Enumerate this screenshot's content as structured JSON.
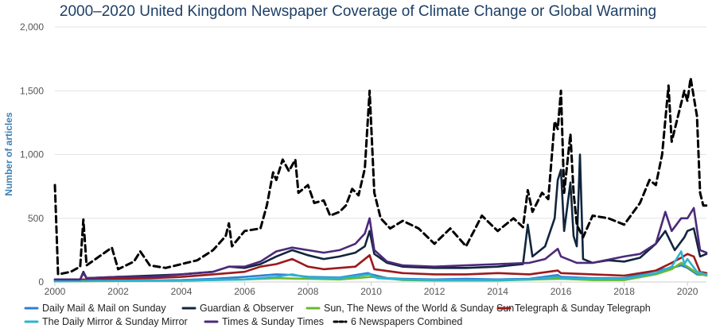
{
  "chart_data": {
    "type": "line",
    "title": "2000–2020 United Kingdom Newspaper Coverage of Climate Change or Global Warming",
    "xlabel": "",
    "ylabel": "Number of articles",
    "xlim": [
      2000,
      2020.6
    ],
    "ylim": [
      0,
      2000
    ],
    "x_ticks": [
      "2000",
      "2002",
      "2004",
      "2006",
      "2008",
      "2010",
      "2012",
      "2014",
      "2016",
      "2018",
      "2020"
    ],
    "y_ticks": [
      "0",
      "500",
      "1,000",
      "1,500",
      "2,000"
    ],
    "grid": true,
    "legend": "bottom",
    "series": [
      {
        "name": "Daily Mail & Mail on Sunday",
        "color": "#2f7fd4",
        "dash": "none",
        "points": [
          [
            2000,
            5
          ],
          [
            2001,
            10
          ],
          [
            2002,
            12
          ],
          [
            2003,
            12
          ],
          [
            2004,
            15
          ],
          [
            2005,
            25
          ],
          [
            2006,
            40
          ],
          [
            2007,
            60
          ],
          [
            2007.5,
            55
          ],
          [
            2008,
            40
          ],
          [
            2009,
            35
          ],
          [
            2009.9,
            70
          ],
          [
            2010,
            60
          ],
          [
            2010.5,
            30
          ],
          [
            2011,
            25
          ],
          [
            2012,
            20
          ],
          [
            2013,
            25
          ],
          [
            2014,
            20
          ],
          [
            2015,
            25
          ],
          [
            2015.9,
            55
          ],
          [
            2016,
            40
          ],
          [
            2017,
            30
          ],
          [
            2018,
            30
          ],
          [
            2019,
            90
          ],
          [
            2019.5,
            110
          ],
          [
            2019.8,
            130
          ],
          [
            2020,
            110
          ],
          [
            2020.3,
            60
          ],
          [
            2020.6,
            55
          ]
        ]
      },
      {
        "name": "Guardian & Observer",
        "color": "#11253d",
        "dash": "none",
        "points": [
          [
            2000,
            20
          ],
          [
            2000.8,
            20
          ],
          [
            2000.9,
            80
          ],
          [
            2001,
            30
          ],
          [
            2002,
            40
          ],
          [
            2003,
            50
          ],
          [
            2004,
            60
          ],
          [
            2005,
            80
          ],
          [
            2005.5,
            120
          ],
          [
            2006,
            110
          ],
          [
            2006.5,
            140
          ],
          [
            2007,
            200
          ],
          [
            2007.5,
            250
          ],
          [
            2008,
            210
          ],
          [
            2008.5,
            180
          ],
          [
            2009,
            200
          ],
          [
            2009.5,
            230
          ],
          [
            2009.8,
            280
          ],
          [
            2009.95,
            400
          ],
          [
            2010.1,
            220
          ],
          [
            2010.5,
            150
          ],
          [
            2011,
            120
          ],
          [
            2012,
            110
          ],
          [
            2013,
            110
          ],
          [
            2014,
            120
          ],
          [
            2014.8,
            140
          ],
          [
            2014.95,
            450
          ],
          [
            2015.1,
            200
          ],
          [
            2015.5,
            280
          ],
          [
            2015.8,
            500
          ],
          [
            2015.9,
            800
          ],
          [
            2016,
            880
          ],
          [
            2016.1,
            400
          ],
          [
            2016.3,
            780
          ],
          [
            2016.4,
            360
          ],
          [
            2016.5,
            280
          ],
          [
            2016.6,
            1000
          ],
          [
            2016.7,
            180
          ],
          [
            2017,
            150
          ],
          [
            2017.5,
            170
          ],
          [
            2018,
            160
          ],
          [
            2018.5,
            190
          ],
          [
            2019,
            300
          ],
          [
            2019.3,
            400
          ],
          [
            2019.6,
            250
          ],
          [
            2019.9,
            350
          ],
          [
            2020,
            400
          ],
          [
            2020.2,
            420
          ],
          [
            2020.4,
            200
          ],
          [
            2020.6,
            220
          ]
        ]
      },
      {
        "name": "Sun, The News of the World & Sunday Sun",
        "color": "#6ab82e",
        "dash": "none",
        "points": [
          [
            2000,
            5
          ],
          [
            2002,
            8
          ],
          [
            2004,
            10
          ],
          [
            2006,
            20
          ],
          [
            2007,
            30
          ],
          [
            2008,
            25
          ],
          [
            2009,
            20
          ],
          [
            2010,
            40
          ],
          [
            2011,
            15
          ],
          [
            2012,
            12
          ],
          [
            2014,
            12
          ],
          [
            2016,
            25
          ],
          [
            2017,
            15
          ],
          [
            2018,
            15
          ],
          [
            2019,
            60
          ],
          [
            2019.5,
            100
          ],
          [
            2019.8,
            150
          ],
          [
            2020,
            120
          ],
          [
            2020.3,
            70
          ],
          [
            2020.6,
            50
          ]
        ]
      },
      {
        "name": "Telegraph & Sunday Telegraph",
        "color": "#9c1a1c",
        "dash": "none",
        "points": [
          [
            2000,
            15
          ],
          [
            2001,
            20
          ],
          [
            2002,
            25
          ],
          [
            2003,
            30
          ],
          [
            2004,
            40
          ],
          [
            2005,
            60
          ],
          [
            2006,
            80
          ],
          [
            2006.5,
            120
          ],
          [
            2007,
            140
          ],
          [
            2007.5,
            180
          ],
          [
            2008,
            120
          ],
          [
            2008.5,
            100
          ],
          [
            2009,
            110
          ],
          [
            2009.5,
            120
          ],
          [
            2009.95,
            210
          ],
          [
            2010.1,
            100
          ],
          [
            2011,
            70
          ],
          [
            2012,
            60
          ],
          [
            2013,
            60
          ],
          [
            2014,
            70
          ],
          [
            2015,
            60
          ],
          [
            2015.9,
            90
          ],
          [
            2016,
            70
          ],
          [
            2017,
            60
          ],
          [
            2018,
            50
          ],
          [
            2019,
            90
          ],
          [
            2019.5,
            150
          ],
          [
            2019.8,
            190
          ],
          [
            2020,
            220
          ],
          [
            2020.2,
            200
          ],
          [
            2020.4,
            80
          ],
          [
            2020.6,
            70
          ]
        ]
      },
      {
        "name": "The Daily Mirror & Sunday Mirror",
        "color": "#2bb4cf",
        "dash": "none",
        "points": [
          [
            2000,
            5
          ],
          [
            2002,
            10
          ],
          [
            2004,
            12
          ],
          [
            2006,
            20
          ],
          [
            2007,
            40
          ],
          [
            2007.5,
            60
          ],
          [
            2008,
            35
          ],
          [
            2009,
            30
          ],
          [
            2009.95,
            60
          ],
          [
            2010.2,
            30
          ],
          [
            2011,
            20
          ],
          [
            2012,
            15
          ],
          [
            2013,
            15
          ],
          [
            2014,
            15
          ],
          [
            2015,
            20
          ],
          [
            2015.9,
            40
          ],
          [
            2016,
            30
          ],
          [
            2017,
            25
          ],
          [
            2018,
            25
          ],
          [
            2019,
            70
          ],
          [
            2019.5,
            120
          ],
          [
            2019.8,
            240
          ],
          [
            2019.9,
            140
          ],
          [
            2020,
            180
          ],
          [
            2020.3,
            80
          ],
          [
            2020.6,
            60
          ]
        ]
      },
      {
        "name": "Times & Sunday Times",
        "color": "#4b2a7a",
        "dash": "none",
        "points": [
          [
            2000,
            20
          ],
          [
            2000.8,
            20
          ],
          [
            2000.9,
            70
          ],
          [
            2001,
            30
          ],
          [
            2002,
            40
          ],
          [
            2003,
            40
          ],
          [
            2004,
            60
          ],
          [
            2005,
            80
          ],
          [
            2005.5,
            120
          ],
          [
            2006,
            120
          ],
          [
            2006.5,
            160
          ],
          [
            2007,
            240
          ],
          [
            2007.5,
            270
          ],
          [
            2008,
            250
          ],
          [
            2008.5,
            230
          ],
          [
            2009,
            250
          ],
          [
            2009.5,
            300
          ],
          [
            2009.8,
            380
          ],
          [
            2009.95,
            500
          ],
          [
            2010.1,
            250
          ],
          [
            2010.5,
            160
          ],
          [
            2011,
            130
          ],
          [
            2012,
            120
          ],
          [
            2013,
            130
          ],
          [
            2014,
            140
          ],
          [
            2015,
            150
          ],
          [
            2015.5,
            180
          ],
          [
            2015.9,
            260
          ],
          [
            2016,
            200
          ],
          [
            2016.5,
            150
          ],
          [
            2017,
            150
          ],
          [
            2018,
            200
          ],
          [
            2018.5,
            220
          ],
          [
            2019,
            300
          ],
          [
            2019.3,
            550
          ],
          [
            2019.5,
            400
          ],
          [
            2019.8,
            500
          ],
          [
            2020,
            500
          ],
          [
            2020.2,
            580
          ],
          [
            2020.4,
            250
          ],
          [
            2020.6,
            230
          ]
        ]
      },
      {
        "name": "6 Newspapers Combined",
        "color": "#000000",
        "dash": "8,5",
        "points": [
          [
            2000,
            760
          ],
          [
            2000.1,
            60
          ],
          [
            2000.5,
            80
          ],
          [
            2000.8,
            120
          ],
          [
            2000.9,
            490
          ],
          [
            2001,
            130
          ],
          [
            2001.4,
            200
          ],
          [
            2001.8,
            270
          ],
          [
            2002,
            100
          ],
          [
            2002.5,
            160
          ],
          [
            2002.7,
            240
          ],
          [
            2003,
            130
          ],
          [
            2003.5,
            110
          ],
          [
            2004,
            140
          ],
          [
            2004.5,
            170
          ],
          [
            2005,
            250
          ],
          [
            2005.4,
            360
          ],
          [
            2005.5,
            460
          ],
          [
            2005.6,
            280
          ],
          [
            2006,
            400
          ],
          [
            2006.5,
            420
          ],
          [
            2006.7,
            600
          ],
          [
            2006.9,
            860
          ],
          [
            2007,
            800
          ],
          [
            2007.2,
            960
          ],
          [
            2007.4,
            870
          ],
          [
            2007.6,
            960
          ],
          [
            2007.7,
            700
          ],
          [
            2008,
            760
          ],
          [
            2008.2,
            620
          ],
          [
            2008.5,
            640
          ],
          [
            2008.7,
            520
          ],
          [
            2009,
            550
          ],
          [
            2009.2,
            600
          ],
          [
            2009.4,
            730
          ],
          [
            2009.6,
            680
          ],
          [
            2009.8,
            890
          ],
          [
            2009.95,
            1500
          ],
          [
            2010.1,
            700
          ],
          [
            2010.3,
            500
          ],
          [
            2010.6,
            420
          ],
          [
            2011,
            480
          ],
          [
            2011.5,
            420
          ],
          [
            2012,
            300
          ],
          [
            2012.5,
            420
          ],
          [
            2013,
            280
          ],
          [
            2013.5,
            520
          ],
          [
            2014,
            400
          ],
          [
            2014.5,
            500
          ],
          [
            2014.8,
            430
          ],
          [
            2014.95,
            720
          ],
          [
            2015.1,
            550
          ],
          [
            2015.4,
            700
          ],
          [
            2015.6,
            650
          ],
          [
            2015.8,
            1260
          ],
          [
            2015.9,
            1200
          ],
          [
            2016,
            1500
          ],
          [
            2016.1,
            700
          ],
          [
            2016.3,
            1160
          ],
          [
            2016.4,
            700
          ],
          [
            2016.5,
            450
          ],
          [
            2016.7,
            350
          ],
          [
            2017,
            520
          ],
          [
            2017.5,
            500
          ],
          [
            2018,
            450
          ],
          [
            2018.5,
            620
          ],
          [
            2018.8,
            800
          ],
          [
            2019,
            760
          ],
          [
            2019.2,
            1000
          ],
          [
            2019.4,
            1540
          ],
          [
            2019.5,
            1100
          ],
          [
            2019.7,
            1300
          ],
          [
            2019.9,
            1500
          ],
          [
            2020,
            1420
          ],
          [
            2020.1,
            1600
          ],
          [
            2020.3,
            1300
          ],
          [
            2020.4,
            700
          ],
          [
            2020.5,
            600
          ],
          [
            2020.6,
            600
          ]
        ]
      }
    ]
  }
}
